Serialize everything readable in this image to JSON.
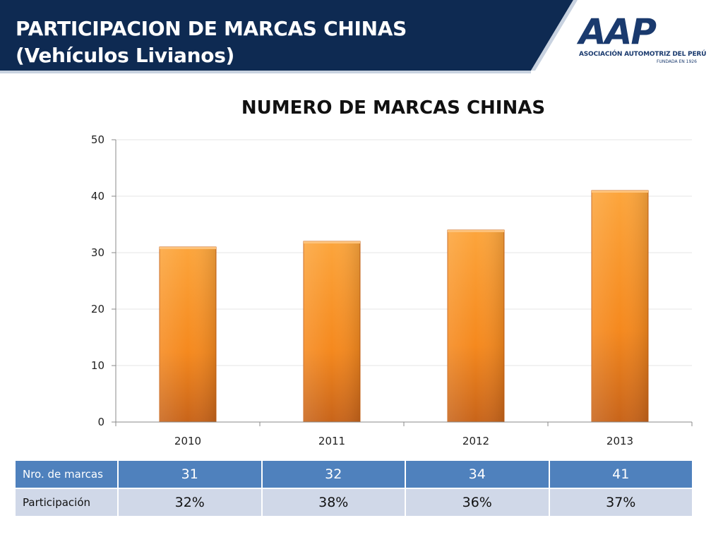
{
  "header": {
    "title_line1": "PARTICIPACION DE MARCAS CHINAS",
    "title_line2": "(Vehículos Livianos)",
    "logo_mark": "AAP",
    "logo_name": "ASOCIACIÓN AUTOMOTRIZ DEL PERÚ",
    "logo_founded": "FUNDADA EN 1926",
    "band_color": "#0e2a52"
  },
  "chart_data": {
    "type": "bar",
    "title": "NUMERO DE MARCAS CHINAS",
    "categories": [
      "2010",
      "2011",
      "2012",
      "2013"
    ],
    "values": [
      31,
      32,
      34,
      41
    ],
    "xlabel": "",
    "ylabel": "",
    "ylim": [
      0,
      50
    ],
    "yticks": [
      0,
      10,
      20,
      30,
      40,
      50
    ],
    "grid": true,
    "bar_color": "#f58a1f"
  },
  "table": {
    "rows": [
      {
        "label": "Nro. de marcas",
        "values": [
          "31",
          "32",
          "34",
          "41"
        ]
      },
      {
        "label": "Participación",
        "values": [
          "32%",
          "38%",
          "36%",
          "37%"
        ]
      }
    ]
  }
}
